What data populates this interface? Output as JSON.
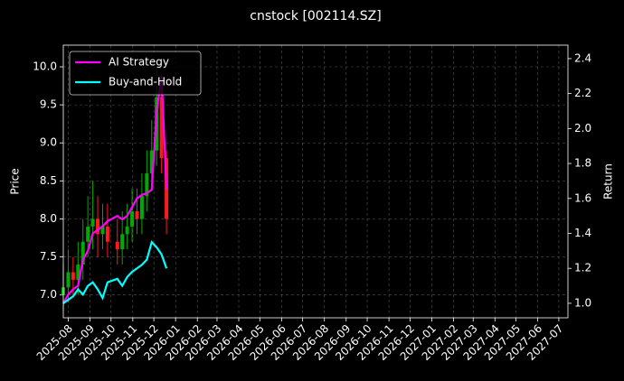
{
  "chart_data": {
    "type": "candlestick",
    "title": "cnstock [002114.SZ]",
    "y_label": "Price",
    "y2_label": "Return",
    "x": [
      "2025-07-25",
      "2025-08-01",
      "2025-08-08",
      "2025-08-15",
      "2025-08-22",
      "2025-08-29",
      "2025-09-05",
      "2025-09-12",
      "2025-09-19",
      "2025-09-26",
      "2025-10-10",
      "2025-10-17",
      "2025-10-24",
      "2025-10-31",
      "2025-11-07",
      "2025-11-14",
      "2025-11-21",
      "2025-11-28",
      "2025-12-05",
      "2025-12-12",
      "2025-12-19"
    ],
    "open": [
      7.0,
      7.1,
      7.3,
      7.2,
      7.4,
      7.7,
      7.9,
      8.0,
      7.8,
      7.9,
      7.7,
      7.6,
      7.8,
      7.9,
      8.1,
      8.0,
      8.3,
      8.6,
      8.9,
      9.6,
      8.8
    ],
    "close": [
      7.1,
      7.3,
      7.2,
      7.4,
      7.7,
      7.9,
      8.0,
      7.8,
      7.9,
      7.7,
      7.6,
      7.8,
      7.9,
      8.1,
      8.0,
      8.3,
      8.6,
      8.9,
      9.6,
      8.8,
      8.0
    ],
    "high": [
      7.4,
      7.6,
      7.5,
      7.7,
      8.0,
      8.3,
      8.5,
      8.3,
      8.2,
      8.2,
      8.0,
      8.1,
      8.2,
      8.4,
      8.4,
      8.6,
      8.9,
      9.3,
      10.0,
      9.9,
      8.9
    ],
    "low": [
      6.8,
      6.9,
      7.0,
      7.0,
      7.2,
      7.5,
      7.6,
      7.5,
      7.6,
      7.5,
      7.4,
      7.4,
      7.6,
      7.7,
      7.8,
      7.8,
      8.1,
      8.4,
      8.7,
      8.6,
      7.8
    ],
    "up_color": "#00aa00",
    "down_color": "#ff1a1a",
    "series": [
      {
        "name": "AI Strategy",
        "color": "#ff00ff",
        "axis": "y2",
        "values": [
          1.0,
          1.05,
          1.08,
          1.1,
          1.25,
          1.3,
          1.4,
          1.42,
          1.44,
          1.47,
          1.5,
          1.48,
          1.5,
          1.55,
          1.6,
          1.62,
          1.63,
          1.65,
          2.1,
          2.3,
          1.65
        ]
      },
      {
        "name": "Buy-and-Hold",
        "color": "#00ffff",
        "axis": "y2",
        "values": [
          1.0,
          1.02,
          1.04,
          1.08,
          1.05,
          1.1,
          1.12,
          1.08,
          1.03,
          1.12,
          1.14,
          1.1,
          1.15,
          1.18,
          1.2,
          1.22,
          1.25,
          1.35,
          1.32,
          1.28,
          1.2
        ]
      }
    ],
    "xlim": [
      "2025-07-25",
      "2027-07-14"
    ],
    "xticks": [
      "2025-08",
      "2025-09",
      "2025-10",
      "2025-11",
      "2025-12",
      "2026-01",
      "2026-02",
      "2026-03",
      "2026-04",
      "2026-05",
      "2026-06",
      "2026-07",
      "2026-08",
      "2026-09",
      "2026-10",
      "2026-11",
      "2026-12",
      "2027-01",
      "2027-02",
      "2027-03",
      "2027-04",
      "2027-05",
      "2027-06",
      "2027-07"
    ],
    "ylim": [
      6.7,
      10.285
    ],
    "yticks": [
      {
        "value": 7,
        "label": "7.0"
      },
      7.5,
      {
        "value": 8,
        "label": "8.0"
      },
      8.5,
      {
        "value": 9,
        "label": "9.0"
      },
      9.5,
      {
        "value": 10,
        "label": "10.0"
      }
    ],
    "y2lim": [
      0.917,
      2.477
    ],
    "y2ticks": [
      {
        "value": 1,
        "label": "1.0"
      },
      1.2,
      1.4,
      1.6,
      1.8,
      {
        "value": 2,
        "label": "2.0"
      },
      2.2,
      2.4
    ],
    "grid": true,
    "legend": "upper left"
  }
}
